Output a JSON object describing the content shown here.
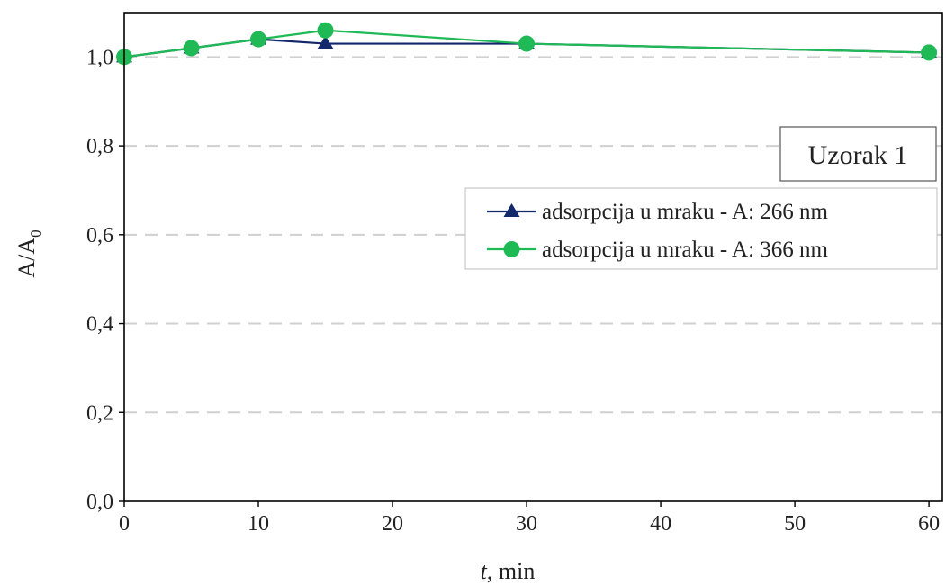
{
  "chart_data": {
    "type": "line",
    "xlabel": "t, min",
    "xlabel_parts": {
      "var": "t",
      "rest": ", min"
    },
    "ylabel": "A/A0",
    "ylabel_parts": {
      "main": "A/A",
      "sub": "0"
    },
    "xlim": [
      0,
      61
    ],
    "ylim": [
      0,
      1.1
    ],
    "xticks": [
      0,
      10,
      20,
      30,
      40,
      50,
      60
    ],
    "yticks": [
      0,
      0.2,
      0.4,
      0.6,
      0.8,
      1.0
    ],
    "xtick_labels": [
      "0",
      "10",
      "20",
      "30",
      "40",
      "50",
      "60"
    ],
    "ytick_labels": [
      "0,0",
      "0,2",
      "0,4",
      "0,6",
      "0,8",
      "1,0"
    ],
    "grid": {
      "y": true,
      "style": "dashed"
    },
    "legend_position": "right",
    "annotation": "Uzorak 1",
    "series": [
      {
        "name": "adsorpcija u mraku - A: 266 nm",
        "color": "#12286b",
        "marker": "triangle",
        "x": [
          0,
          5,
          10,
          15,
          30,
          60
        ],
        "y": [
          1.0,
          1.02,
          1.04,
          1.03,
          1.03,
          1.01
        ]
      },
      {
        "name": "adsorpcija u mraku - A: 366 nm",
        "color": "#1fba55",
        "marker": "circle",
        "x": [
          0,
          5,
          10,
          15,
          30,
          60
        ],
        "y": [
          1.0,
          1.02,
          1.04,
          1.06,
          1.03,
          1.01
        ]
      }
    ]
  }
}
